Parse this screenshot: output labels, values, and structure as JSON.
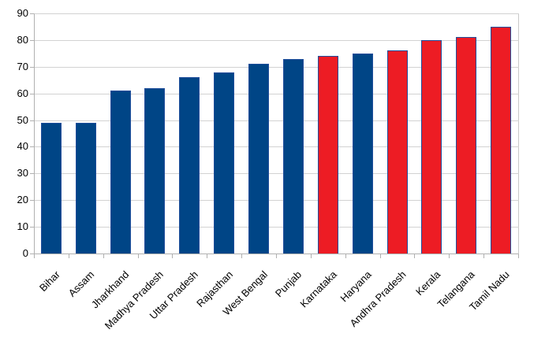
{
  "chart_data": {
    "type": "bar",
    "title": "",
    "xlabel": "",
    "ylabel": "",
    "categories": [
      "Bihar",
      "Assam",
      "Jharkhand",
      "Madhya Pradesh",
      "Uttar Pradesh",
      "Rajasthan",
      "West Bengal",
      "Punjab",
      "Karnataka",
      "Haryana",
      "Andhra Pradesh",
      "Kerala",
      "Telangana",
      "Tamil Nadu"
    ],
    "values": [
      49,
      49,
      61,
      62,
      66,
      68,
      71,
      73,
      74,
      75,
      76,
      80,
      81,
      85
    ],
    "bar_colors": [
      "#004586",
      "#004586",
      "#004586",
      "#004586",
      "#004586",
      "#004586",
      "#004586",
      "#004586",
      "#ED1C24",
      "#004586",
      "#ED1C24",
      "#ED1C24",
      "#ED1C24",
      "#ED1C24"
    ],
    "ylim": [
      0,
      90
    ],
    "yticks": [
      0,
      10,
      20,
      30,
      40,
      50,
      60,
      70,
      80,
      90
    ],
    "grid": true,
    "legend_position": "none",
    "x_label_rotation_deg": 45,
    "colors": {
      "primary_bar": "#004586",
      "highlight_bar": "#ED1C24",
      "bar_border": "#1f4e9c",
      "gridline": "#d2d2d2",
      "axis_line": "#b0b0b0",
      "frame": "#c9c9c9",
      "text": "#000000",
      "background": "#ffffff"
    }
  }
}
